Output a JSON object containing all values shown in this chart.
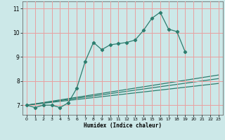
{
  "title": "",
  "xlabel": "Humidex (Indice chaleur)",
  "bg_color": "#cce8e8",
  "line_color": "#2d7d6e",
  "grid_color": "#e8a0a0",
  "xlim": [
    -0.5,
    23.5
  ],
  "ylim": [
    6.6,
    11.3
  ],
  "xticks": [
    0,
    1,
    2,
    3,
    4,
    5,
    6,
    7,
    8,
    9,
    10,
    11,
    12,
    13,
    14,
    15,
    16,
    17,
    18,
    19,
    20,
    21,
    22,
    23
  ],
  "yticks": [
    7,
    8,
    9,
    10,
    11
  ],
  "line1_x": [
    0,
    1,
    2,
    3,
    4,
    5,
    6,
    7,
    8,
    9,
    10,
    11,
    12,
    13,
    14,
    15,
    16,
    17,
    18,
    19
  ],
  "line1_y": [
    7.0,
    6.9,
    7.0,
    7.0,
    6.9,
    7.1,
    7.7,
    8.8,
    9.6,
    9.3,
    9.5,
    9.55,
    9.6,
    9.7,
    10.1,
    10.6,
    10.85,
    10.15,
    10.05,
    9.2
  ],
  "line2_x": [
    0,
    23
  ],
  "line2_y": [
    7.0,
    8.25
  ],
  "line3_x": [
    0,
    23
  ],
  "line3_y": [
    7.0,
    8.1
  ],
  "line4_x": [
    0,
    23
  ],
  "line4_y": [
    7.0,
    7.9
  ]
}
